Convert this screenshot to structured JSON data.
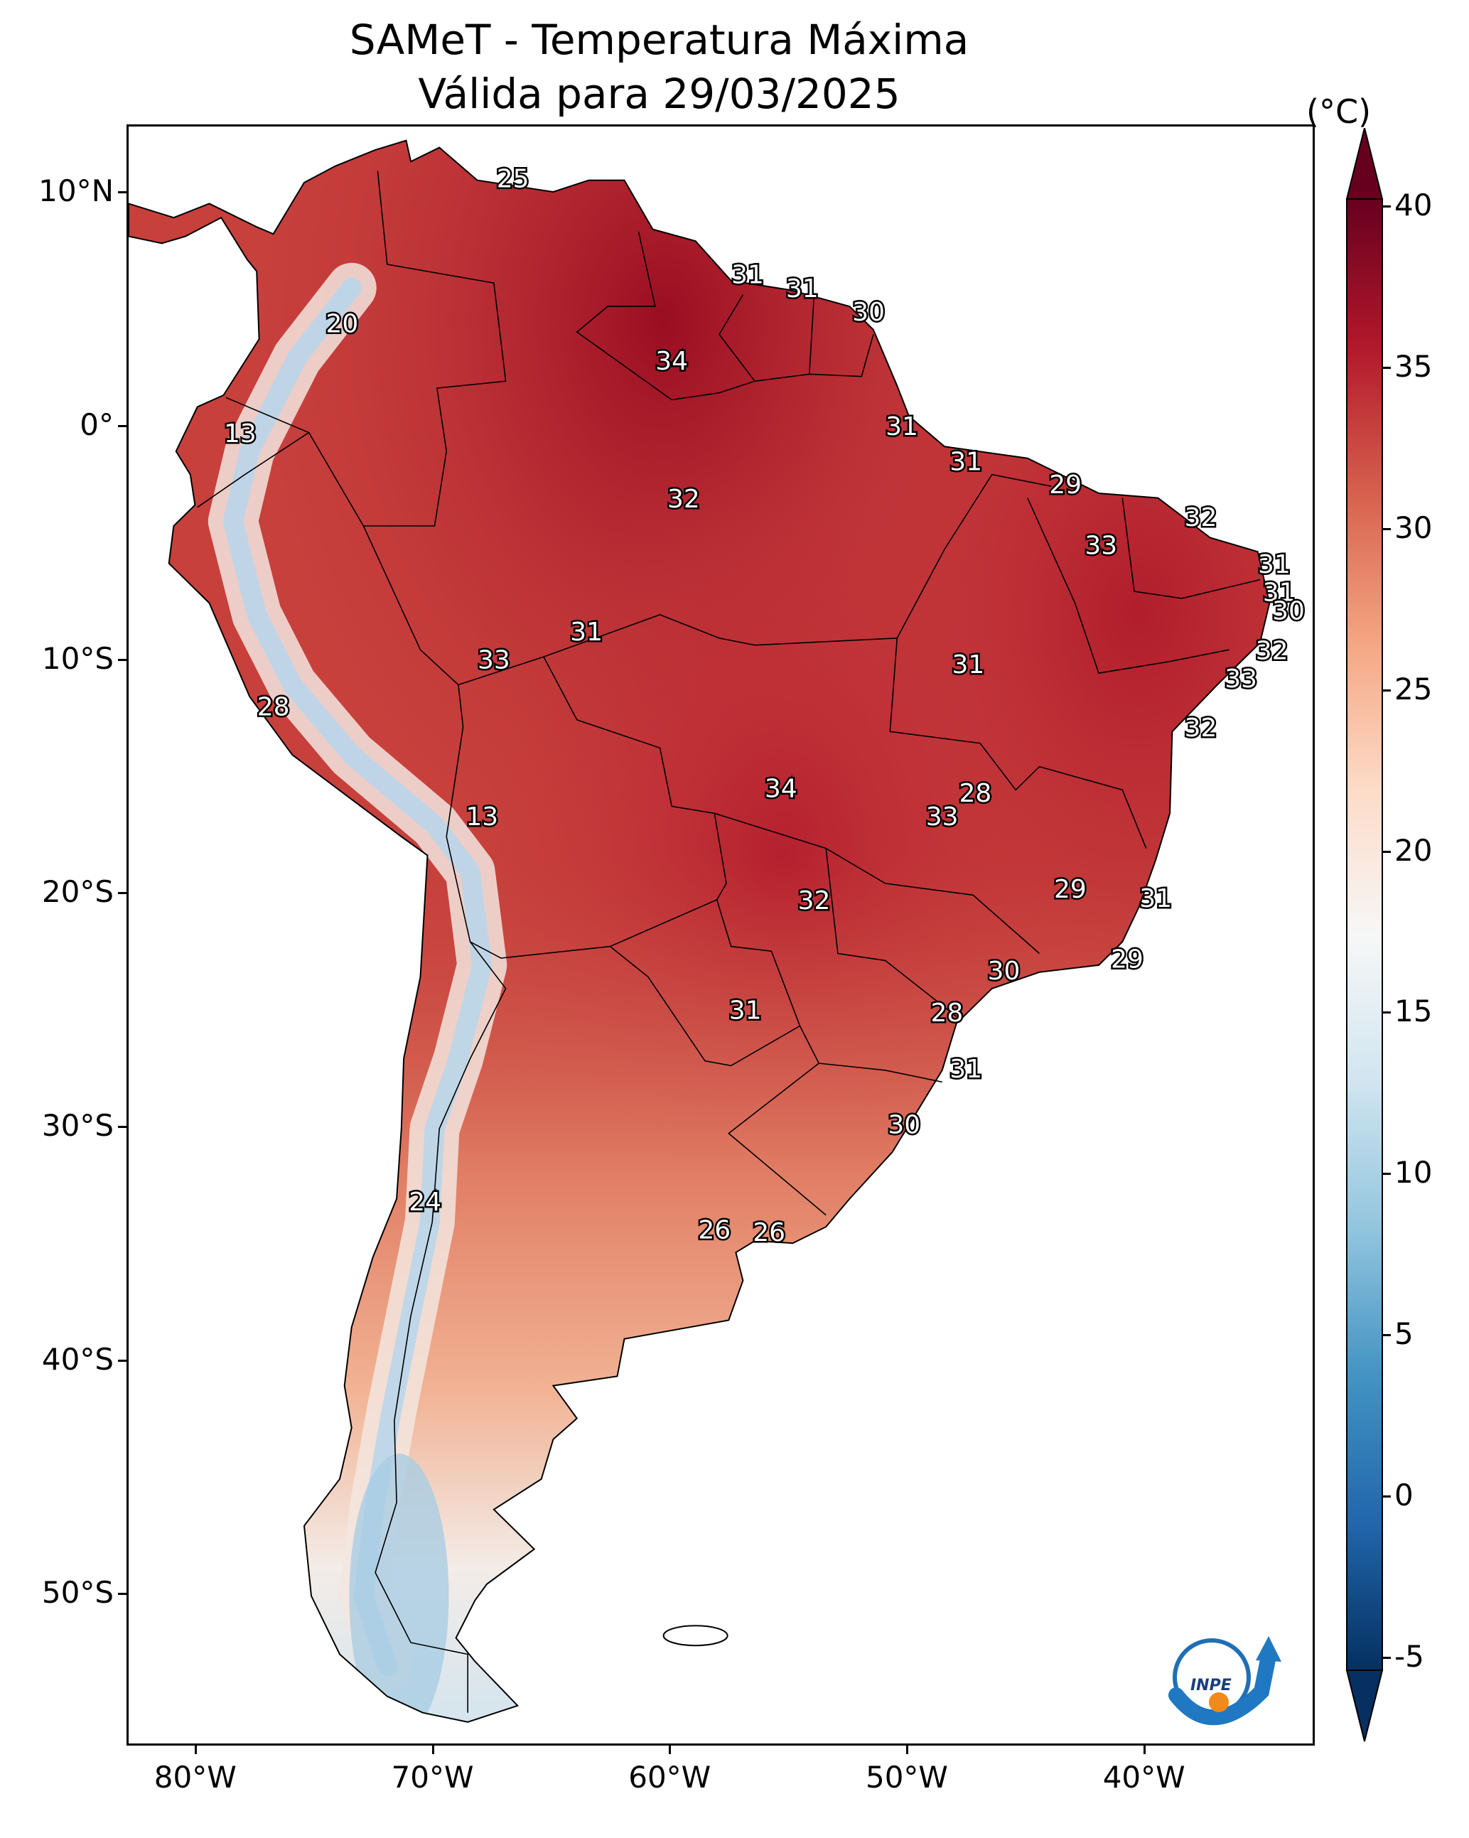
{
  "title": "SAMeT - Temperatura Máxima",
  "subtitle": "Válida para 29/03/2025",
  "colorbar": {
    "unit": "(°C)",
    "ticks": [
      "40",
      "35",
      "30",
      "25",
      "20",
      "15",
      "10",
      "5",
      "0",
      "-5"
    ],
    "range": [
      -5,
      40
    ],
    "extend": "both",
    "colors": [
      "#053061",
      "#2166ac",
      "#4393c3",
      "#92c5de",
      "#d1e5f0",
      "#f7f7f7",
      "#fddbc7",
      "#f4a582",
      "#d6604d",
      "#b2182b",
      "#67001f"
    ]
  },
  "axes": {
    "lat_labels": [
      "10°N",
      "0°",
      "10°S",
      "20°S",
      "30°S",
      "40°S",
      "50°S"
    ],
    "lon_labels": [
      "80°W",
      "70°W",
      "60°W",
      "50°W",
      "40°W"
    ]
  },
  "logo": {
    "text": "INPE",
    "icon": "inpe-logo-icon"
  },
  "map_labels": [
    {
      "text": "25",
      "lon": -66.7,
      "lat": 10.6
    },
    {
      "text": "31",
      "lon": -56.8,
      "lat": 6.5
    },
    {
      "text": "31",
      "lon": -54.5,
      "lat": 5.9
    },
    {
      "text": "30",
      "lon": -51.7,
      "lat": 4.9
    },
    {
      "text": "20",
      "lon": -73.9,
      "lat": 4.4
    },
    {
      "text": "34",
      "lon": -60.0,
      "lat": 2.8
    },
    {
      "text": "13",
      "lon": -78.2,
      "lat": -0.3
    },
    {
      "text": "31",
      "lon": -50.3,
      "lat": 0.0
    },
    {
      "text": "31",
      "lon": -47.6,
      "lat": -1.5
    },
    {
      "text": "29",
      "lon": -43.4,
      "lat": -2.5
    },
    {
      "text": "32",
      "lon": -59.5,
      "lat": -3.1
    },
    {
      "text": "32",
      "lon": -37.7,
      "lat": -3.9
    },
    {
      "text": "33",
      "lon": -41.9,
      "lat": -5.1
    },
    {
      "text": "31",
      "lon": -34.6,
      "lat": -5.9
    },
    {
      "text": "31",
      "lon": -34.4,
      "lat": -7.1
    },
    {
      "text": "30",
      "lon": -34.0,
      "lat": -7.9
    },
    {
      "text": "31",
      "lon": -63.6,
      "lat": -8.8
    },
    {
      "text": "33",
      "lon": -67.5,
      "lat": -10.0
    },
    {
      "text": "31",
      "lon": -47.5,
      "lat": -10.2
    },
    {
      "text": "32",
      "lon": -34.7,
      "lat": -9.6
    },
    {
      "text": "33",
      "lon": -36.0,
      "lat": -10.8
    },
    {
      "text": "28",
      "lon": -76.8,
      "lat": -12.0
    },
    {
      "text": "32",
      "lon": -37.7,
      "lat": -12.9
    },
    {
      "text": "34",
      "lon": -55.4,
      "lat": -15.5
    },
    {
      "text": "28",
      "lon": -47.2,
      "lat": -15.7
    },
    {
      "text": "33",
      "lon": -48.6,
      "lat": -16.7
    },
    {
      "text": "13",
      "lon": -68.0,
      "lat": -16.7
    },
    {
      "text": "29",
      "lon": -43.2,
      "lat": -19.8
    },
    {
      "text": "32",
      "lon": -54.0,
      "lat": -20.3
    },
    {
      "text": "31",
      "lon": -39.6,
      "lat": -20.2
    },
    {
      "text": "29",
      "lon": -40.8,
      "lat": -22.8
    },
    {
      "text": "30",
      "lon": -46.0,
      "lat": -23.3
    },
    {
      "text": "31",
      "lon": -56.9,
      "lat": -25.0
    },
    {
      "text": "28",
      "lon": -48.4,
      "lat": -25.1
    },
    {
      "text": "31",
      "lon": -47.6,
      "lat": -27.5
    },
    {
      "text": "30",
      "lon": -50.2,
      "lat": -29.9
    },
    {
      "text": "24",
      "lon": -70.4,
      "lat": -33.2
    },
    {
      "text": "26",
      "lon": -58.2,
      "lat": -34.4
    },
    {
      "text": "26",
      "lon": -55.9,
      "lat": -34.5
    }
  ]
}
